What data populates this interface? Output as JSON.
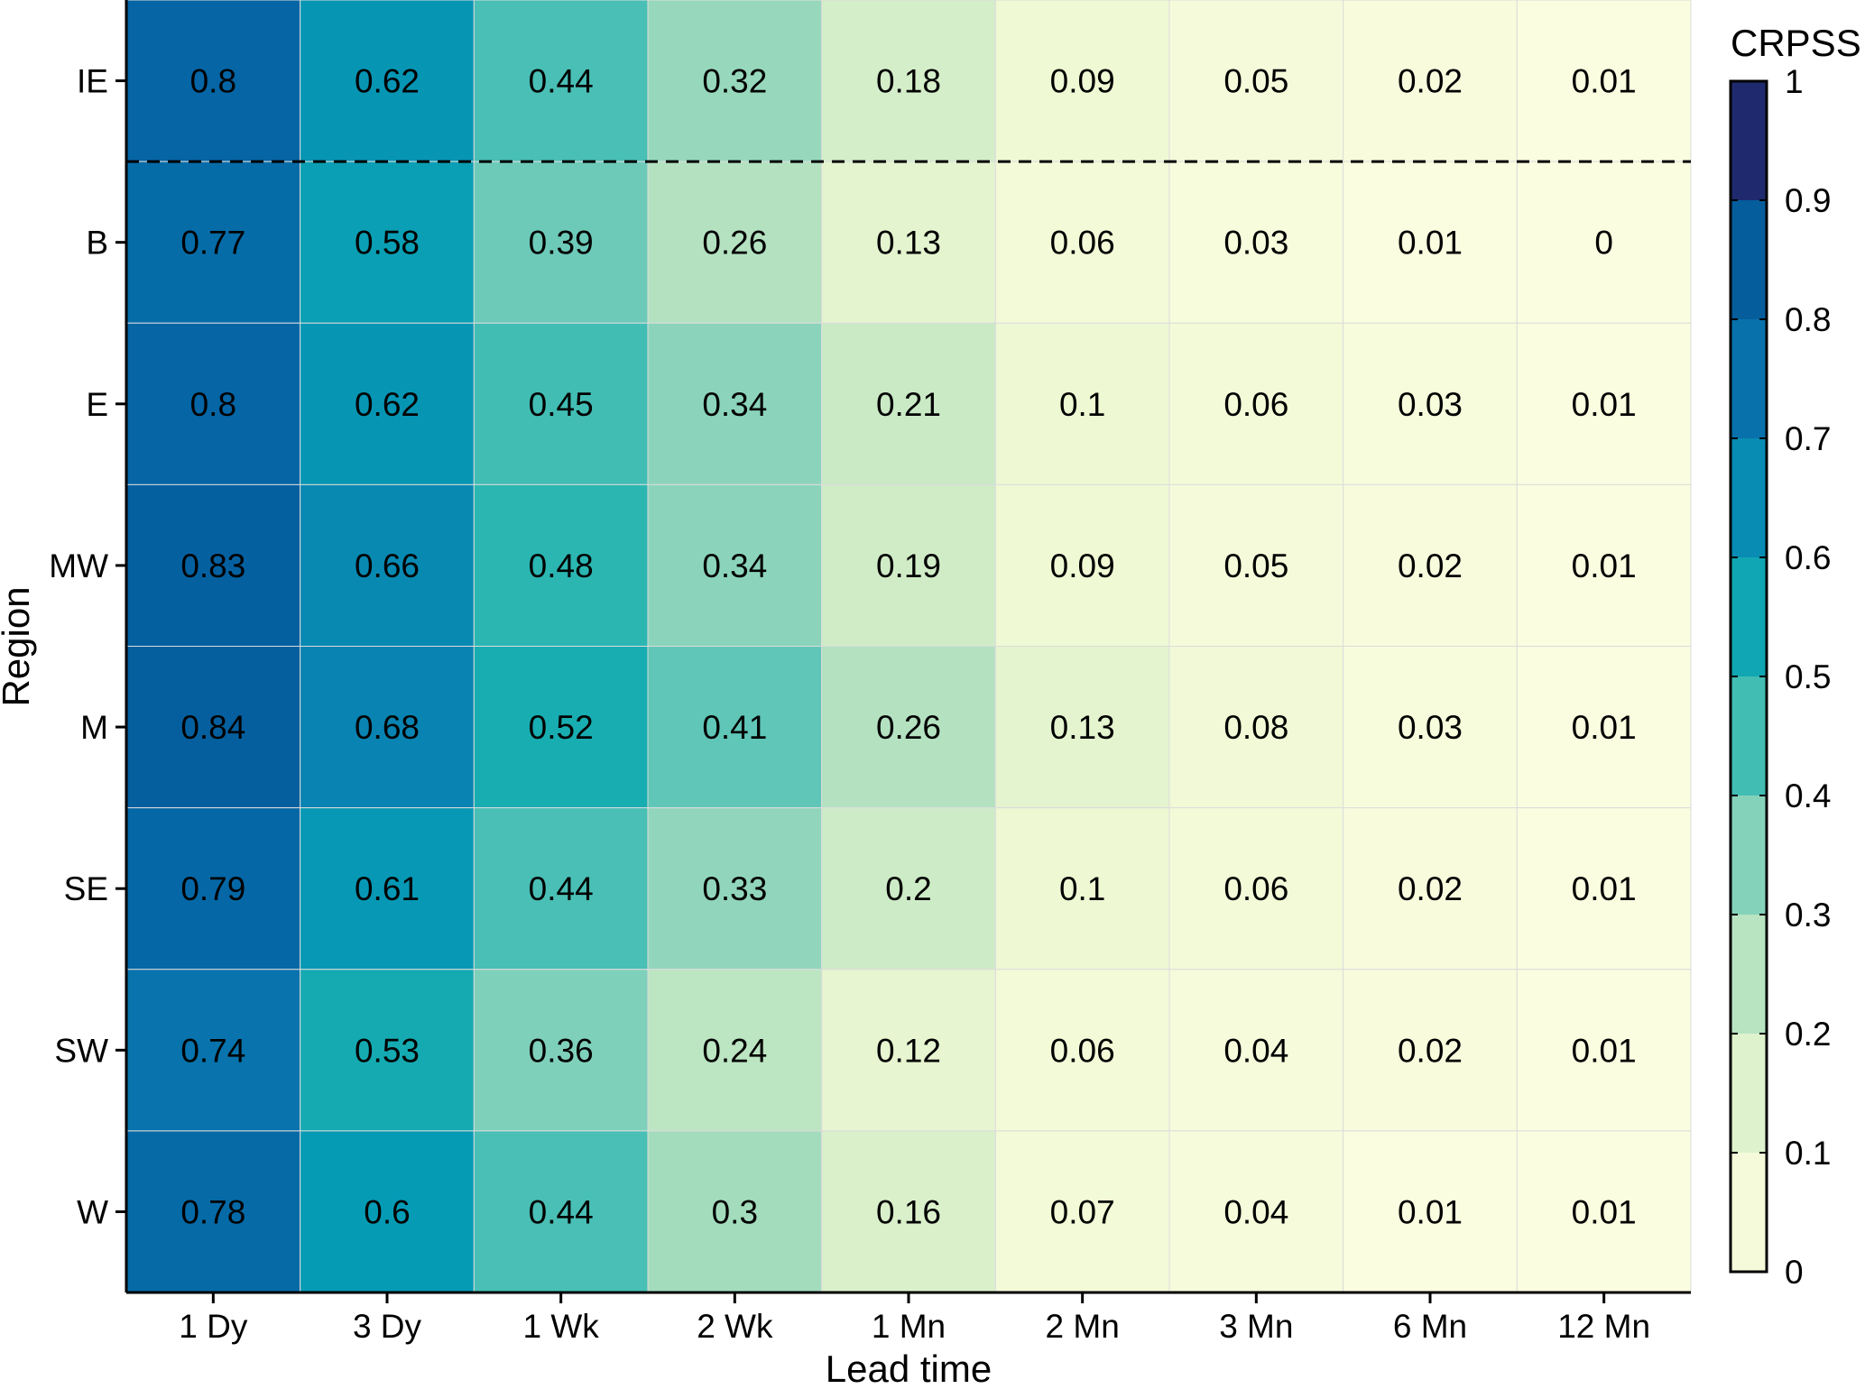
{
  "chart_data": {
    "type": "heatmap",
    "xlabel": "Lead time",
    "ylabel": "Region",
    "x_categories": [
      "1 Dy",
      "3 Dy",
      "1 Wk",
      "2 Wk",
      "1 Mn",
      "2 Mn",
      "3 Mn",
      "6 Mn",
      "12 Mn"
    ],
    "y_categories": [
      "IE",
      "B",
      "E",
      "MW",
      "M",
      "SE",
      "SW",
      "W"
    ],
    "values": [
      [
        0.8,
        0.62,
        0.44,
        0.32,
        0.18,
        0.09,
        0.05,
        0.02,
        0.01
      ],
      [
        0.77,
        0.58,
        0.39,
        0.26,
        0.13,
        0.06,
        0.03,
        0.01,
        0
      ],
      [
        0.8,
        0.62,
        0.45,
        0.34,
        0.21,
        0.1,
        0.06,
        0.03,
        0.01
      ],
      [
        0.83,
        0.66,
        0.48,
        0.34,
        0.19,
        0.09,
        0.05,
        0.02,
        0.01
      ],
      [
        0.84,
        0.68,
        0.52,
        0.41,
        0.26,
        0.13,
        0.08,
        0.03,
        0.01
      ],
      [
        0.79,
        0.61,
        0.44,
        0.33,
        0.2,
        0.1,
        0.06,
        0.02,
        0.01
      ],
      [
        0.74,
        0.53,
        0.36,
        0.24,
        0.12,
        0.06,
        0.04,
        0.02,
        0.01
      ],
      [
        0.78,
        0.6,
        0.44,
        0.3,
        0.16,
        0.07,
        0.04,
        0.01,
        0.01
      ]
    ],
    "separator_after_row": "IE",
    "legend": {
      "title": "CRPSS",
      "placement": "right",
      "range": [
        0,
        1
      ],
      "ticks": [
        "0",
        "0.1",
        "0.2",
        "0.3",
        "0.4",
        "0.5",
        "0.6",
        "0.7",
        "0.8",
        "0.9",
        "1"
      ]
    },
    "colors": [
      "#fbfde0",
      "#eef8d3",
      "#cdebc6",
      "#a3dcbd",
      "#67c8b8",
      "#1cb1b0",
      "#069bb5",
      "#0a7db0",
      "#0565a5",
      "#045593",
      "#1f2a6e"
    ]
  }
}
